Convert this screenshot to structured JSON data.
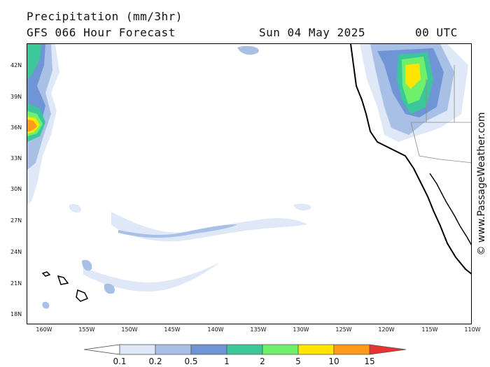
{
  "header": {
    "title": "Precipitation (mm/3hr)",
    "subtitle": "GFS 066 Hour Forecast",
    "date": "Sun 04 May 2025",
    "time": "00 UTC"
  },
  "credit": "© www.PassageWeather.com",
  "lat_labels": [
    "42N",
    "39N",
    "36N",
    "33N",
    "30N",
    "27N",
    "24N",
    "21N",
    "18N"
  ],
  "lon_labels": [
    "160W",
    "155W",
    "150W",
    "145W",
    "140W",
    "135W",
    "130W",
    "125W",
    "120W",
    "115W",
    "110W"
  ],
  "legend": {
    "values": [
      "0.1",
      "0.2",
      "0.5",
      "1",
      "2",
      "5",
      "10",
      "15"
    ],
    "colors": [
      "#ffffff",
      "#dfe8f7",
      "#a9c0e6",
      "#6f95d6",
      "#3cc79b",
      "#6ff06a",
      "#ffe600",
      "#ff9a1a",
      "#e83232"
    ]
  }
}
